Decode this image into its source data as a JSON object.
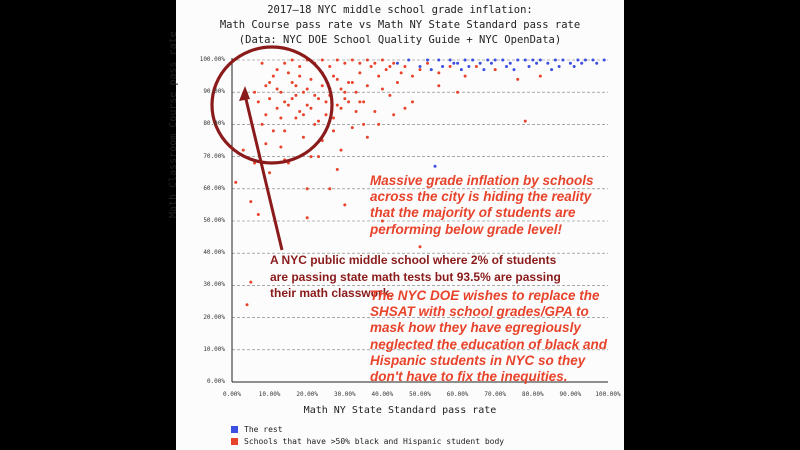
{
  "chart_data": {
    "type": "scatter",
    "title": [
      "2017–18 NYC middle school grade inflation:",
      "Math Course pass rate vs Math NY State Standard pass rate",
      "(Data: NYC DOE School Quality Guide + NYC OpenData)"
    ],
    "xlabel": "Math NY State Standard pass rate",
    "ylabel": "Math Classroom Course pass rate",
    "xlim": [
      0,
      100
    ],
    "ylim": [
      0,
      100
    ],
    "x_ticks": [
      "0.00%",
      "10.00%",
      "20.00%",
      "30.00%",
      "40.00%",
      "50.00%",
      "60.00%",
      "70.00%",
      "80.00%",
      "90.00%",
      "100.00%"
    ],
    "y_ticks": [
      "0.00%",
      "10.00%",
      "20.00%",
      "30.00%",
      "40.00%",
      "50.00%",
      "60.00%",
      "70.00%",
      "80.00%",
      "90.00%",
      "100.00%"
    ],
    "grid": "horizontal dashed",
    "series": [
      {
        "name": "The rest",
        "color": "#3b4fe0",
        "points": [
          [
            52,
            100
          ],
          [
            55,
            100
          ],
          [
            58,
            100
          ],
          [
            60,
            99
          ],
          [
            62,
            100
          ],
          [
            64,
            100
          ],
          [
            66,
            99
          ],
          [
            68,
            100
          ],
          [
            70,
            100
          ],
          [
            72,
            100
          ],
          [
            74,
            99
          ],
          [
            76,
            100
          ],
          [
            78,
            100
          ],
          [
            80,
            100
          ],
          [
            82,
            100
          ],
          [
            84,
            99
          ],
          [
            86,
            100
          ],
          [
            88,
            100
          ],
          [
            90,
            99
          ],
          [
            92,
            100
          ],
          [
            94,
            100
          ],
          [
            96,
            100
          ],
          [
            99,
            100
          ],
          [
            50,
            98
          ],
          [
            56,
            98
          ],
          [
            61,
            97
          ],
          [
            67,
            97
          ],
          [
            73,
            98
          ],
          [
            79,
            98
          ],
          [
            85,
            97
          ],
          [
            91,
            98
          ],
          [
            44,
            99
          ],
          [
            47,
            100
          ],
          [
            53,
            97
          ],
          [
            59,
            99
          ],
          [
            63,
            98
          ],
          [
            69,
            99
          ],
          [
            75,
            97
          ],
          [
            81,
            99
          ],
          [
            87,
            98
          ],
          [
            93,
            99
          ],
          [
            97,
            99
          ],
          [
            54,
            67
          ]
        ]
      },
      {
        "name": "Schools that have >50% black and Hispanic student body",
        "color": "#e8432b",
        "points": [
          [
            1,
            62
          ],
          [
            3,
            72
          ],
          [
            4,
            24
          ],
          [
            5,
            56
          ],
          [
            6,
            68
          ],
          [
            7,
            52
          ],
          [
            8,
            80
          ],
          [
            9,
            92
          ],
          [
            10,
            88
          ],
          [
            11,
            95
          ],
          [
            12,
            85
          ],
          [
            13,
            90
          ],
          [
            14,
            78
          ],
          [
            15,
            96
          ],
          [
            16,
            88
          ],
          [
            17,
            92
          ],
          [
            18,
            84
          ],
          [
            19,
            90
          ],
          [
            20,
            86
          ],
          [
            21,
            94
          ],
          [
            22,
            80
          ],
          [
            23,
            88
          ],
          [
            24,
            92
          ],
          [
            25,
            83
          ],
          [
            26,
            89
          ],
          [
            27,
            95
          ],
          [
            28,
            86
          ],
          [
            29,
            91
          ],
          [
            30,
            88
          ],
          [
            31,
            93
          ],
          [
            32,
            79
          ],
          [
            33,
            90
          ],
          [
            34,
            96
          ],
          [
            35,
            87
          ],
          [
            36,
            92
          ],
          [
            37,
            98
          ],
          [
            38,
            84
          ],
          [
            39,
            95
          ],
          [
            40,
            91
          ],
          [
            41,
            97
          ],
          [
            42,
            89
          ],
          [
            43,
            99
          ],
          [
            44,
            93
          ],
          [
            45,
            96
          ],
          [
            46,
            98
          ],
          [
            48,
            95
          ],
          [
            50,
            97
          ],
          [
            52,
            99
          ],
          [
            55,
            96
          ],
          [
            58,
            98
          ],
          [
            62,
            95
          ],
          [
            65,
            98
          ],
          [
            70,
            97
          ],
          [
            76,
            94
          ],
          [
            78,
            81
          ],
          [
            82,
            95
          ],
          [
            9,
            83
          ],
          [
            11,
            78
          ],
          [
            13,
            73
          ],
          [
            15,
            68
          ],
          [
            17,
            82
          ],
          [
            19,
            76
          ],
          [
            21,
            70
          ],
          [
            24,
            75
          ],
          [
            27,
            78
          ],
          [
            29,
            72
          ],
          [
            33,
            84
          ],
          [
            36,
            76
          ],
          [
            39,
            80
          ],
          [
            43,
            83
          ],
          [
            46,
            85
          ],
          [
            55,
            92
          ],
          [
            12,
            97
          ],
          [
            14,
            99
          ],
          [
            16,
            100
          ],
          [
            18,
            98
          ],
          [
            20,
            100
          ],
          [
            22,
            99
          ],
          [
            24,
            100
          ],
          [
            26,
            98
          ],
          [
            28,
            100
          ],
          [
            30,
            99
          ],
          [
            32,
            100
          ],
          [
            34,
            99
          ],
          [
            36,
            100
          ],
          [
            38,
            99
          ],
          [
            40,
            100
          ],
          [
            42,
            98
          ],
          [
            10,
            93
          ],
          [
            12,
            91
          ],
          [
            14,
            87
          ],
          [
            16,
            93
          ],
          [
            18,
            95
          ],
          [
            20,
            91
          ],
          [
            22,
            89
          ],
          [
            24,
            96
          ],
          [
            26,
            91
          ],
          [
            28,
            94
          ],
          [
            30,
            90
          ],
          [
            32,
            93
          ],
          [
            34,
            87
          ],
          [
            13,
            82
          ],
          [
            15,
            86
          ],
          [
            17,
            89
          ],
          [
            19,
            83
          ],
          [
            21,
            85
          ],
          [
            23,
            81
          ],
          [
            25,
            87
          ],
          [
            27,
            82
          ],
          [
            29,
            85
          ],
          [
            31,
            87
          ],
          [
            5,
            31
          ],
          [
            10,
            65
          ],
          [
            14,
            69
          ],
          [
            20,
            60
          ],
          [
            30,
            55
          ],
          [
            40,
            50
          ],
          [
            50,
            42
          ],
          [
            20,
            51
          ],
          [
            28,
            66
          ],
          [
            35,
            80
          ],
          [
            48,
            87
          ],
          [
            60,
            90
          ],
          [
            8,
            99
          ],
          [
            9,
            74
          ],
          [
            6,
            90
          ],
          [
            7,
            87
          ],
          [
            23,
            70
          ],
          [
            26,
            60
          ]
        ]
      }
    ],
    "legend": [
      "The rest",
      "Schools that have >50% black and Hispanic student body"
    ],
    "legend_placement": "bottom-left"
  },
  "annotations": {
    "grade_inflation": "Massive grade inflation by schools across the city is hiding the reality that the majority of students are performing below grade level!",
    "example_school": "A NYC public middle school where 2% of students are passing state math tests but 93.5% are passing their math classwork.",
    "shsat": "The NYC DOE wishes to replace the SHSAT with school grades/GPA to mask how they have egregiously neglected the education of black and Hispanic students in NYC so they don't have to fix the inequities."
  },
  "colors": {
    "blue": "#3b4fe0",
    "red": "#e8432b",
    "dark_red": "#8b1a1a"
  }
}
